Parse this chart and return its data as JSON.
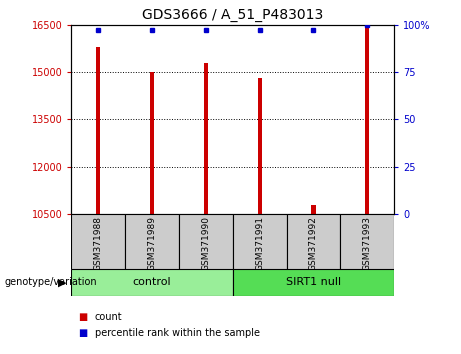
{
  "title": "GDS3666 / A_51_P483013",
  "samples": [
    "GSM371988",
    "GSM371989",
    "GSM371990",
    "GSM371991",
    "GSM371992",
    "GSM371993"
  ],
  "counts": [
    15800,
    15000,
    15300,
    14800,
    10800,
    16500
  ],
  "percentiles": [
    97,
    97,
    97,
    97,
    97,
    100
  ],
  "ylim_left": [
    10500,
    16500
  ],
  "ylim_right": [
    0,
    100
  ],
  "yticks_left": [
    10500,
    12000,
    13500,
    15000,
    16500
  ],
  "yticks_right": [
    0,
    25,
    50,
    75,
    100
  ],
  "bar_color": "#cc0000",
  "dot_color": "#0000cc",
  "bar_width": 0.08,
  "groups": [
    {
      "label": "control",
      "indices": [
        0,
        1,
        2
      ],
      "color": "#99ee99"
    },
    {
      "label": "SIRT1 null",
      "indices": [
        3,
        4,
        5
      ],
      "color": "#55dd55"
    }
  ],
  "group_label": "genotype/variation",
  "legend_items": [
    {
      "label": "count",
      "color": "#cc0000"
    },
    {
      "label": "percentile rank within the sample",
      "color": "#0000cc"
    }
  ],
  "grid_color": "#000000",
  "grid_style": "dotted",
  "left_tick_color": "#cc0000",
  "right_tick_color": "#0000cc",
  "label_bg": "#cccccc",
  "title_fontsize": 10
}
